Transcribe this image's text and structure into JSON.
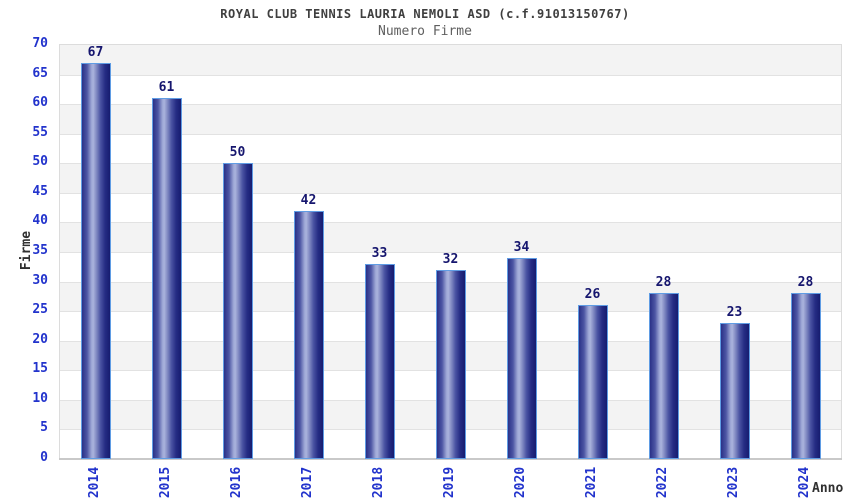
{
  "chart": {
    "title": "ROYAL CLUB TENNIS LAURIA NEMOLI ASD (c.f.91013150767)",
    "subtitle": "Numero Firme"
  },
  "chart_data": {
    "type": "bar",
    "title": "ROYAL CLUB TENNIS LAURIA NEMOLI ASD (c.f.91013150767)",
    "subtitle": "Numero Firme",
    "categories": [
      "2014",
      "2015",
      "2016",
      "2017",
      "2018",
      "2019",
      "2020",
      "2021",
      "2022",
      "2023",
      "2024"
    ],
    "values": [
      67,
      61,
      50,
      42,
      33,
      32,
      34,
      26,
      28,
      23,
      28
    ],
    "xlabel": "Anno",
    "ylabel": "Firme",
    "ylim": [
      0,
      70
    ],
    "ytick_step": 5,
    "yticks": [
      0,
      5,
      10,
      15,
      20,
      25,
      30,
      35,
      40,
      45,
      50,
      55,
      60,
      65,
      70
    ],
    "legend": null,
    "grid": "horizontal-bands-every-5",
    "style": {
      "title_color": "#3f3f3f",
      "subtitle_color": "#5f5f5f",
      "axis_tick_color": "#2233cc",
      "value_label_color": "#16166e",
      "axis_title_color": "#303030",
      "band_gray": "#f3f3f3",
      "band_white": "#ffffff",
      "gridline_color": "#e2e2e2",
      "bar_border_color": "#5f9ce4",
      "bar_dark": "#2a3187",
      "bar_light": "#aab3dc",
      "bar_darkest": "#161c6f"
    }
  }
}
